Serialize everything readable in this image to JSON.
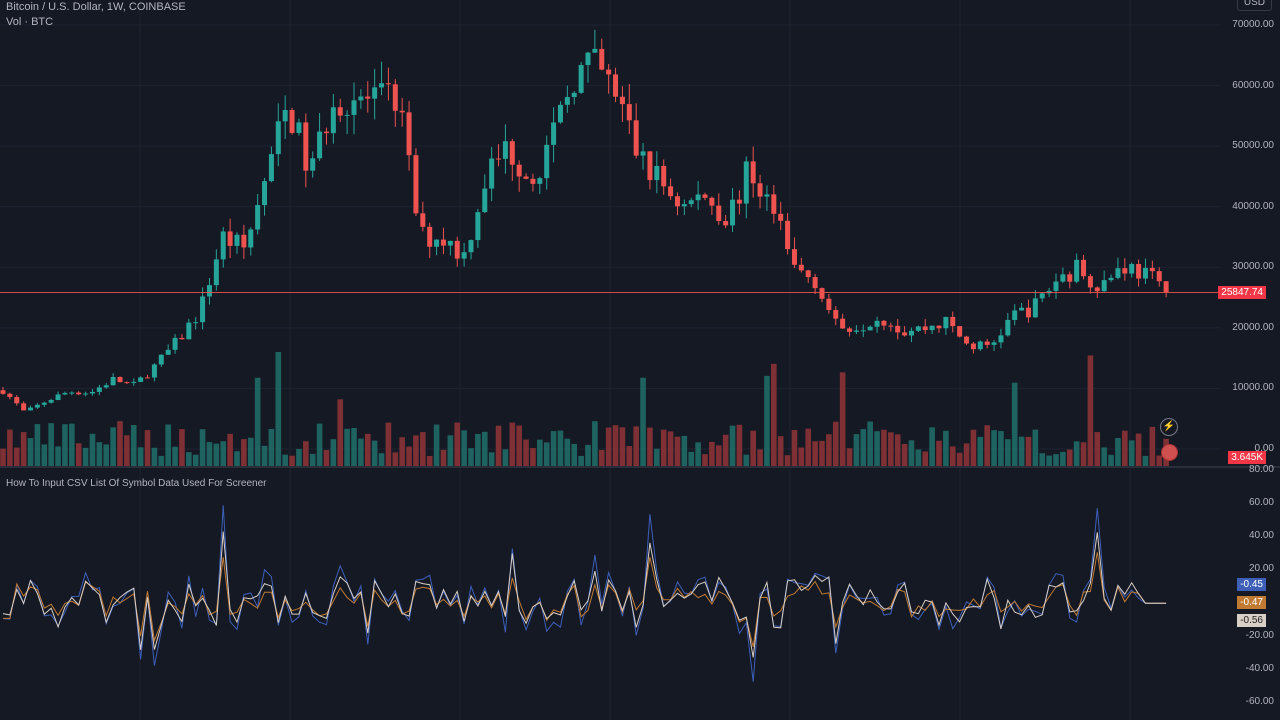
{
  "header": {
    "title": "Bitcoin / U.S. Dollar, 1W, COINBASE",
    "volume_label": "Vol · BTC",
    "currency": "USD"
  },
  "price_axis": [
    "70000.00",
    "60000.00",
    "50000.00",
    "40000.00",
    "30000.00",
    "20000.00",
    "10000.00",
    "0.00"
  ],
  "last_price": "25847.74",
  "last_volume": "3.645K",
  "indicator": {
    "title": "How To Input CSV List Of Symbol Data Used For Screener",
    "axis": [
      "80.00",
      "60.00",
      "40.00",
      "20.00",
      "-20.00",
      "-40.00",
      "-60.00"
    ],
    "values": [
      {
        "label": "-0.45",
        "color": "#3d5fb8"
      },
      {
        "label": "-0.47",
        "color": "#c07a32"
      },
      {
        "label": "-0.56",
        "color": "#d8cfc6"
      }
    ]
  },
  "colors": {
    "up": "#26a69a",
    "down": "#ef5350",
    "bg": "#151924",
    "grid": "#1f2330"
  },
  "chart_data": {
    "type": "candlestick",
    "interval": "1W",
    "ylim": [
      0,
      70000
    ],
    "price_path": [
      9700,
      6000,
      8000,
      9500,
      9300,
      11500,
      10500,
      14000,
      18000,
      23000,
      35000,
      33000,
      45000,
      57000,
      45000,
      58000,
      58000,
      57000,
      58000,
      35000,
      35000,
      32000,
      45000,
      50000,
      45000,
      50000,
      62000,
      63000,
      58000,
      48000,
      44000,
      40000,
      42000,
      38000,
      46000,
      40000,
      30000,
      28000,
      20000,
      20500,
      22000,
      19500,
      20000,
      21000,
      17000,
      17000,
      22000,
      23500,
      28000,
      30000,
      27000,
      30500,
      29000,
      25847.74
    ]
  }
}
